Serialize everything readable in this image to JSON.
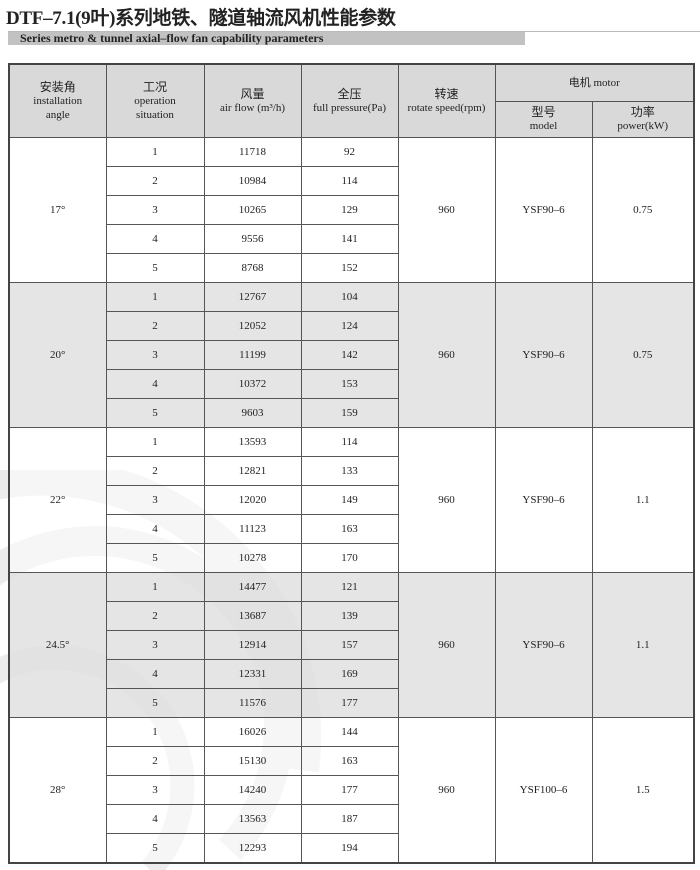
{
  "header": {
    "title": "DTF–7.1(9叶)系列地铁、隧道轴流风机性能参数",
    "subtitle": "Series metro & tunnel axial–flow fan capability parameters"
  },
  "table": {
    "columns": {
      "angle": {
        "zh": "安装角",
        "en1": "installation",
        "en2": "angle"
      },
      "situation": {
        "zh": "工况",
        "en1": "operation",
        "en2": "situation"
      },
      "airflow": {
        "zh": "风量",
        "en": "air flow (m³/h)"
      },
      "pressure": {
        "zh": "全压",
        "en": "full pressure(Pa)"
      },
      "speed": {
        "zh": "转速",
        "en": "rotate speed(rpm)"
      },
      "motor": {
        "label": "电机 motor"
      },
      "model": {
        "zh": "型号",
        "en": "model"
      },
      "power": {
        "zh": "功率",
        "en": "power(kW)"
      }
    },
    "groups": [
      {
        "angle": "17°",
        "speed": "960",
        "model": "YSF90–6",
        "power": "0.75",
        "shaded": false,
        "rows": [
          [
            "1",
            "11718",
            "92"
          ],
          [
            "2",
            "10984",
            "114"
          ],
          [
            "3",
            "10265",
            "129"
          ],
          [
            "4",
            "9556",
            "141"
          ],
          [
            "5",
            "8768",
            "152"
          ]
        ]
      },
      {
        "angle": "20°",
        "speed": "960",
        "model": "YSF90–6",
        "power": "0.75",
        "shaded": true,
        "rows": [
          [
            "1",
            "12767",
            "104"
          ],
          [
            "2",
            "12052",
            "124"
          ],
          [
            "3",
            "11199",
            "142"
          ],
          [
            "4",
            "10372",
            "153"
          ],
          [
            "5",
            "9603",
            "159"
          ]
        ]
      },
      {
        "angle": "22°",
        "speed": "960",
        "model": "YSF90–6",
        "power": "1.1",
        "shaded": false,
        "rows": [
          [
            "1",
            "13593",
            "114"
          ],
          [
            "2",
            "12821",
            "133"
          ],
          [
            "3",
            "12020",
            "149"
          ],
          [
            "4",
            "11123",
            "163"
          ],
          [
            "5",
            "10278",
            "170"
          ]
        ]
      },
      {
        "angle": "24.5°",
        "speed": "960",
        "model": "YSF90–6",
        "power": "1.1",
        "shaded": true,
        "rows": [
          [
            "1",
            "14477",
            "121"
          ],
          [
            "2",
            "13687",
            "139"
          ],
          [
            "3",
            "12914",
            "157"
          ],
          [
            "4",
            "12331",
            "169"
          ],
          [
            "5",
            "11576",
            "177"
          ]
        ]
      },
      {
        "angle": "28°",
        "speed": "960",
        "model": "YSF100–6",
        "power": "1.5",
        "shaded": false,
        "rows": [
          [
            "1",
            "16026",
            "144"
          ],
          [
            "2",
            "15130",
            "163"
          ],
          [
            "3",
            "14240",
            "177"
          ],
          [
            "4",
            "13563",
            "187"
          ],
          [
            "5",
            "12293",
            "194"
          ]
        ]
      }
    ]
  },
  "colors": {
    "header_bg": "#d9d9d9",
    "shade_bg": "#e0e0e0",
    "subtitle_bar": "#c2c2c2"
  }
}
